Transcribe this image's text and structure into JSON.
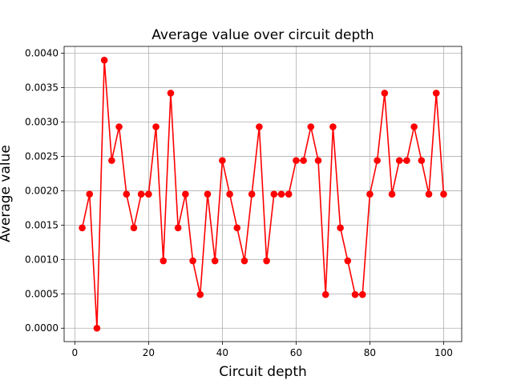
{
  "chart_data": {
    "type": "line",
    "title": "Average value over circuit depth",
    "xlabel": "Circuit depth",
    "ylabel": "Average value",
    "xlim": [
      -2.9,
      104.9
    ],
    "ylim": [
      -0.000195,
      0.0041
    ],
    "xticks": [
      0,
      20,
      40,
      60,
      80,
      100
    ],
    "xtick_labels": [
      "0",
      "20",
      "40",
      "60",
      "80",
      "100"
    ],
    "yticks": [
      0,
      0.0005,
      0.001,
      0.0015,
      0.002,
      0.0025,
      0.003,
      0.0035,
      0.004
    ],
    "ytick_labels": [
      "0.0000",
      "0.0005",
      "0.0010",
      "0.0015",
      "0.0020",
      "0.0025",
      "0.0030",
      "0.0035",
      "0.0040"
    ],
    "grid": true,
    "series": [
      {
        "color": "#ff0000",
        "marker": "circle",
        "x": [
          2,
          4,
          6,
          8,
          10,
          12,
          14,
          16,
          18,
          20,
          22,
          24,
          26,
          28,
          30,
          32,
          34,
          36,
          38,
          40,
          42,
          44,
          46,
          48,
          50,
          52,
          54,
          56,
          58,
          60,
          62,
          64,
          66,
          68,
          70,
          72,
          74,
          76,
          78,
          80,
          82,
          84,
          86,
          88,
          90,
          92,
          94,
          96,
          98,
          100
        ],
        "values": [
          0.00146,
          0.00195,
          0.0,
          0.0039,
          0.00244,
          0.00293,
          0.00195,
          0.00146,
          0.00195,
          0.00195,
          0.00293,
          0.00098,
          0.00342,
          0.00146,
          0.00195,
          0.00098,
          0.00049,
          0.00195,
          0.00098,
          0.00244,
          0.00195,
          0.00146,
          0.00098,
          0.00195,
          0.00293,
          0.00098,
          0.00195,
          0.00195,
          0.00195,
          0.00244,
          0.00244,
          0.00293,
          0.00244,
          0.00049,
          0.00293,
          0.00146,
          0.00098,
          0.00049,
          0.00049,
          0.00195,
          0.00244,
          0.00342,
          0.00195,
          0.00244,
          0.00244,
          0.00293,
          0.00244,
          0.00195,
          0.00342,
          0.00195
        ]
      }
    ]
  }
}
